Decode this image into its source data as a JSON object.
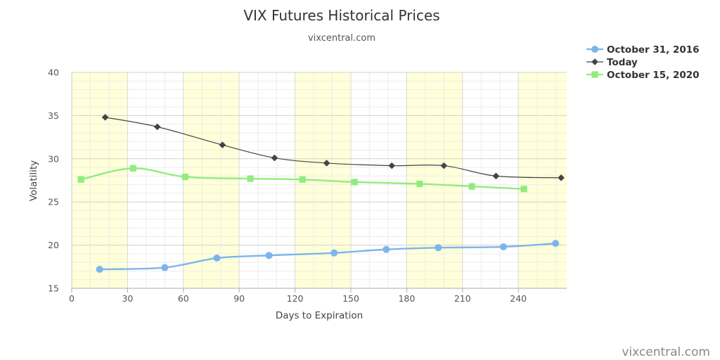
{
  "chart_data": {
    "type": "line",
    "title": "VIX Futures Historical Prices",
    "subtitle": "vixcentral.com",
    "credit": "vixcentral.com",
    "xlabel": "Days to Expiration",
    "ylabel": "Volatility",
    "xlim": [
      0,
      266
    ],
    "ylim": [
      15,
      40
    ],
    "x_ticks": [
      0,
      30,
      60,
      90,
      120,
      150,
      180,
      210,
      240
    ],
    "y_ticks": [
      15,
      20,
      25,
      30,
      35,
      40
    ],
    "x_bands": [
      [
        0,
        30
      ],
      [
        60,
        90
      ],
      [
        120,
        150
      ],
      [
        180,
        210
      ],
      [
        240,
        266
      ]
    ],
    "grid": true,
    "legend_position": "top-right",
    "band_color": "#ffffd9",
    "series": [
      {
        "name": "October 31, 2016",
        "color": "#7cb5ec",
        "marker": "circle",
        "x": [
          15,
          50,
          78,
          106,
          141,
          169,
          197,
          232,
          260
        ],
        "y": [
          17.2,
          17.4,
          18.5,
          18.8,
          19.1,
          19.5,
          19.7,
          19.8,
          20.2
        ]
      },
      {
        "name": "Today",
        "color": "#434348",
        "marker": "diamond",
        "x": [
          18,
          46,
          81,
          109,
          137,
          172,
          200,
          228,
          263
        ],
        "y": [
          34.8,
          33.7,
          31.6,
          30.1,
          29.5,
          29.2,
          29.2,
          28.0,
          27.8
        ]
      },
      {
        "name": "October 15, 2020",
        "color": "#90ed7d",
        "marker": "square",
        "x": [
          5,
          33,
          61,
          96,
          124,
          152,
          187,
          215,
          243
        ],
        "y": [
          27.6,
          28.9,
          27.9,
          27.7,
          27.6,
          27.3,
          27.1,
          26.8,
          26.5
        ]
      }
    ]
  }
}
